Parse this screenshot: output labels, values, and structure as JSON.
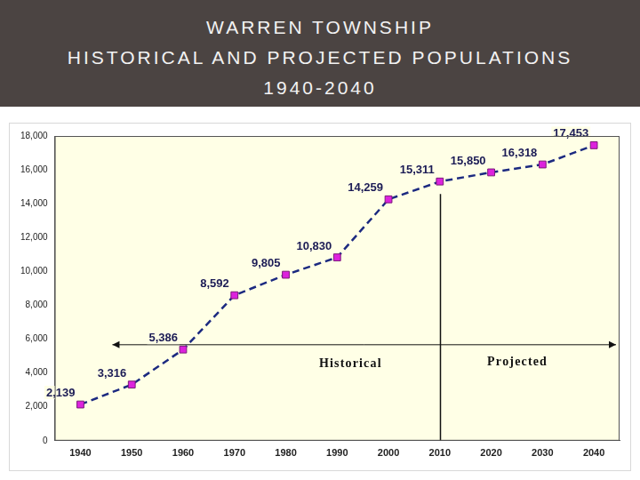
{
  "chart_data": {
    "type": "line",
    "title": "WARREN TOWNSHIP\nHISTORICAL AND PROJECTED POPULATIONS\n1940-2040",
    "categories": [
      "1940",
      "1950",
      "1960",
      "1970",
      "1980",
      "1990",
      "2000",
      "2010",
      "2020",
      "2030",
      "2040"
    ],
    "values": [
      2139,
      3316,
      5386,
      8592,
      9805,
      10830,
      14259,
      15311,
      15850,
      16318,
      17453
    ],
    "value_labels": [
      "2,139",
      "3,316",
      "5,386",
      "8,592",
      "9,805",
      "10,830",
      "14,259",
      "15,311",
      "15,850",
      "16,318",
      "17,453"
    ],
    "data_labels": true,
    "color": "#1c2a80",
    "marker": "square",
    "line_style": "dashed",
    "ylim": [
      0,
      18000
    ],
    "yticks": [
      0,
      {
        "value": 2000,
        "label": "2,000"
      },
      {
        "value": 4000,
        "label": "4,000"
      },
      {
        "value": 6000,
        "label": "6,000"
      },
      {
        "value": 8000,
        "label": "8,000"
      },
      {
        "value": 10000,
        "label": "10,000"
      },
      {
        "value": 12000,
        "label": "12,000"
      },
      {
        "value": 14000,
        "label": "14,000"
      },
      {
        "value": 16000,
        "label": "16,000"
      },
      {
        "value": 18000,
        "label": "18,000"
      }
    ],
    "grid": false,
    "annotations": [
      {
        "text": "Historical",
        "x_from": "1940",
        "x_to": "2010"
      },
      {
        "text": "Projected",
        "x_from": "2010",
        "x_to": "2040"
      }
    ]
  }
}
